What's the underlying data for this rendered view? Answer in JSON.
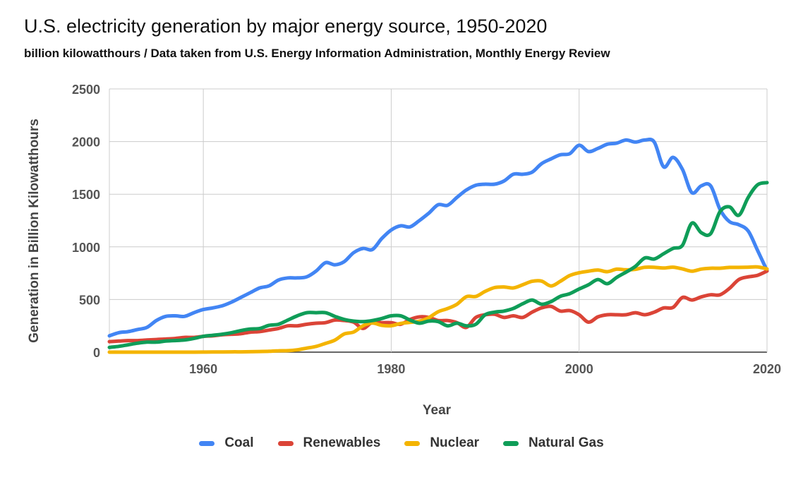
{
  "header": {
    "title": "U.S. electricity generation by major energy source, 1950-2020",
    "subtitle": "billion kilowatthours / Data taken from  U.S. Energy Information Administration, Monthly Energy Review"
  },
  "chart_data": {
    "type": "line",
    "title": "U.S. electricity generation by major energy source, 1950-2020",
    "subtitle": "billion kilowatthours / Data taken from  U.S. Energy Information Administration, Monthly Energy Review",
    "xlabel": "Year",
    "ylabel": "Generation in Billion Kilowatthours",
    "xlim": [
      1950,
      2020
    ],
    "ylim": [
      0,
      2500
    ],
    "xticks": [
      1960,
      1980,
      2000,
      2020
    ],
    "yticks": [
      0,
      500,
      1000,
      1500,
      2000,
      2500
    ],
    "grid": true,
    "legend_position": "bottom",
    "x": [
      1950,
      1951,
      1952,
      1953,
      1954,
      1955,
      1956,
      1957,
      1958,
      1959,
      1960,
      1961,
      1962,
      1963,
      1964,
      1965,
      1966,
      1967,
      1968,
      1969,
      1970,
      1971,
      1972,
      1973,
      1974,
      1975,
      1976,
      1977,
      1978,
      1979,
      1980,
      1981,
      1982,
      1983,
      1984,
      1985,
      1986,
      1987,
      1988,
      1989,
      1990,
      1991,
      1992,
      1993,
      1994,
      1995,
      1996,
      1997,
      1998,
      1999,
      2000,
      2001,
      2002,
      2003,
      2004,
      2005,
      2006,
      2007,
      2008,
      2009,
      2010,
      2011,
      2012,
      2013,
      2014,
      2015,
      2016,
      2017,
      2018,
      2019,
      2020
    ],
    "series": [
      {
        "name": "Coal",
        "color": "#4285f4",
        "values": [
          155,
          185,
          195,
          215,
          235,
          300,
          340,
          345,
          340,
          375,
          405,
          420,
          440,
          475,
          520,
          565,
          610,
          630,
          685,
          705,
          705,
          715,
          770,
          850,
          830,
          860,
          945,
          985,
          975,
          1080,
          1160,
          1200,
          1190,
          1250,
          1320,
          1400,
          1395,
          1470,
          1540,
          1585,
          1595,
          1595,
          1625,
          1690,
          1690,
          1710,
          1790,
          1835,
          1875,
          1885,
          1965,
          1905,
          1935,
          1975,
          1985,
          2015,
          1995,
          2015,
          1995,
          1760,
          1850,
          1735,
          1515,
          1580,
          1580,
          1355,
          1240,
          1210,
          1150,
          965,
          775
        ]
      },
      {
        "name": "Renewables",
        "color": "#db4437",
        "values": [
          100,
          105,
          110,
          110,
          115,
          120,
          125,
          130,
          140,
          140,
          150,
          155,
          165,
          170,
          175,
          190,
          195,
          210,
          225,
          250,
          250,
          265,
          275,
          280,
          305,
          300,
          285,
          225,
          285,
          280,
          280,
          265,
          310,
          335,
          330,
          300,
          300,
          280,
          235,
          330,
          355,
          360,
          330,
          345,
          330,
          380,
          420,
          435,
          390,
          395,
          355,
          285,
          335,
          355,
          355,
          355,
          375,
          355,
          380,
          420,
          425,
          520,
          495,
          525,
          545,
          545,
          605,
          690,
          715,
          730,
          770
        ]
      },
      {
        "name": "Nuclear",
        "color": "#f4b400",
        "values": [
          0,
          0,
          0,
          0,
          0,
          0,
          0,
          0,
          0,
          0,
          1,
          2,
          2,
          3,
          3,
          4,
          6,
          8,
          13,
          14,
          22,
          38,
          54,
          83,
          114,
          173,
          191,
          251,
          276,
          255,
          251,
          273,
          283,
          294,
          328,
          384,
          414,
          455,
          527,
          529,
          577,
          613,
          619,
          610,
          640,
          673,
          675,
          629,
          673,
          728,
          754,
          769,
          780,
          764,
          788,
          782,
          787,
          806,
          806,
          799,
          807,
          790,
          769,
          789,
          797,
          797,
          805,
          805,
          807,
          809,
          790
        ]
      },
      {
        "name": "Natural Gas",
        "color": "#0f9d58",
        "values": [
          45,
          55,
          70,
          85,
          95,
          95,
          105,
          110,
          115,
          130,
          150,
          160,
          170,
          185,
          205,
          220,
          225,
          255,
          265,
          305,
          345,
          375,
          375,
          375,
          340,
          310,
          295,
          290,
          300,
          320,
          345,
          345,
          305,
          275,
          295,
          290,
          250,
          275,
          250,
          265,
          355,
          380,
          390,
          415,
          460,
          495,
          455,
          480,
          530,
          555,
          600,
          640,
          690,
          650,
          710,
          760,
          815,
          895,
          885,
          935,
          985,
          1015,
          1225,
          1135,
          1125,
          1335,
          1380,
          1300,
          1470,
          1590,
          1610
        ]
      }
    ]
  }
}
